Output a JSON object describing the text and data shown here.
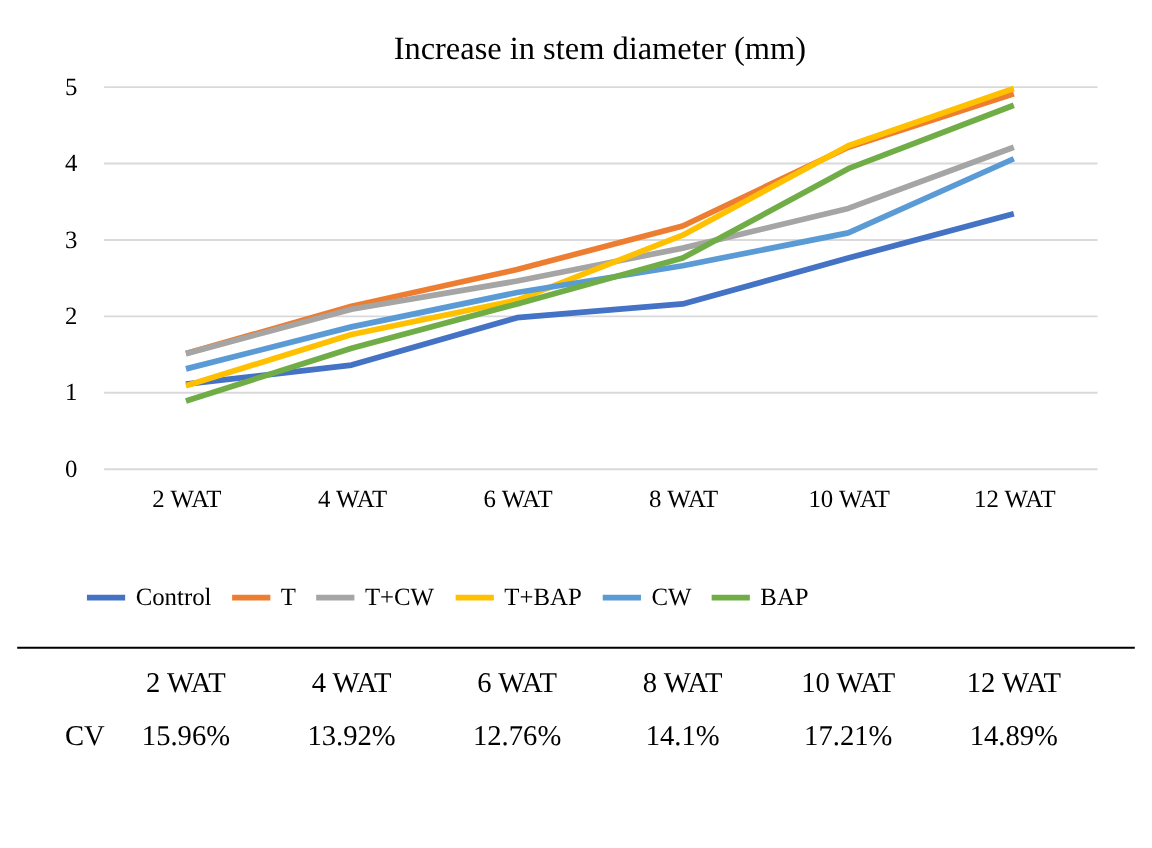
{
  "chart_data": {
    "type": "line",
    "title": "Increase in stem diameter (mm)",
    "categories": [
      "2 WAT",
      "4 WAT",
      "6 WAT",
      "8 WAT",
      "10 WAT",
      "12 WAT"
    ],
    "series": [
      {
        "name": "Control",
        "color": "#4472c4",
        "values": [
          1.1,
          1.35,
          1.97,
          2.15,
          2.75,
          3.33
        ]
      },
      {
        "name": "T",
        "color": "#ed7d31",
        "values": [
          1.5,
          2.12,
          2.6,
          3.17,
          4.2,
          4.9
        ]
      },
      {
        "name": "T+CW",
        "color": "#a5a5a5",
        "values": [
          1.5,
          2.08,
          2.45,
          2.88,
          3.4,
          4.2
        ]
      },
      {
        "name": "T+BAP",
        "color": "#ffc000",
        "values": [
          1.08,
          1.75,
          2.2,
          3.05,
          4.22,
          4.97
        ]
      },
      {
        "name": "CW",
        "color": "#5b9bd5",
        "values": [
          1.3,
          1.85,
          2.3,
          2.65,
          3.08,
          4.05
        ]
      },
      {
        "name": "BAP",
        "color": "#70ad47",
        "values": [
          0.88,
          1.57,
          2.15,
          2.75,
          3.92,
          4.75
        ]
      }
    ],
    "ylim": [
      0,
      5
    ],
    "yticks": [
      0,
      1,
      2,
      3,
      4,
      5
    ],
    "grid": "y",
    "legend": "bottom",
    "marker": "none",
    "line_style": "solid",
    "annotations": [
      "CV",
      "15.96%",
      "13.92%",
      "12.76%",
      "14.1%",
      "17.21%",
      "14.89%"
    ]
  }
}
